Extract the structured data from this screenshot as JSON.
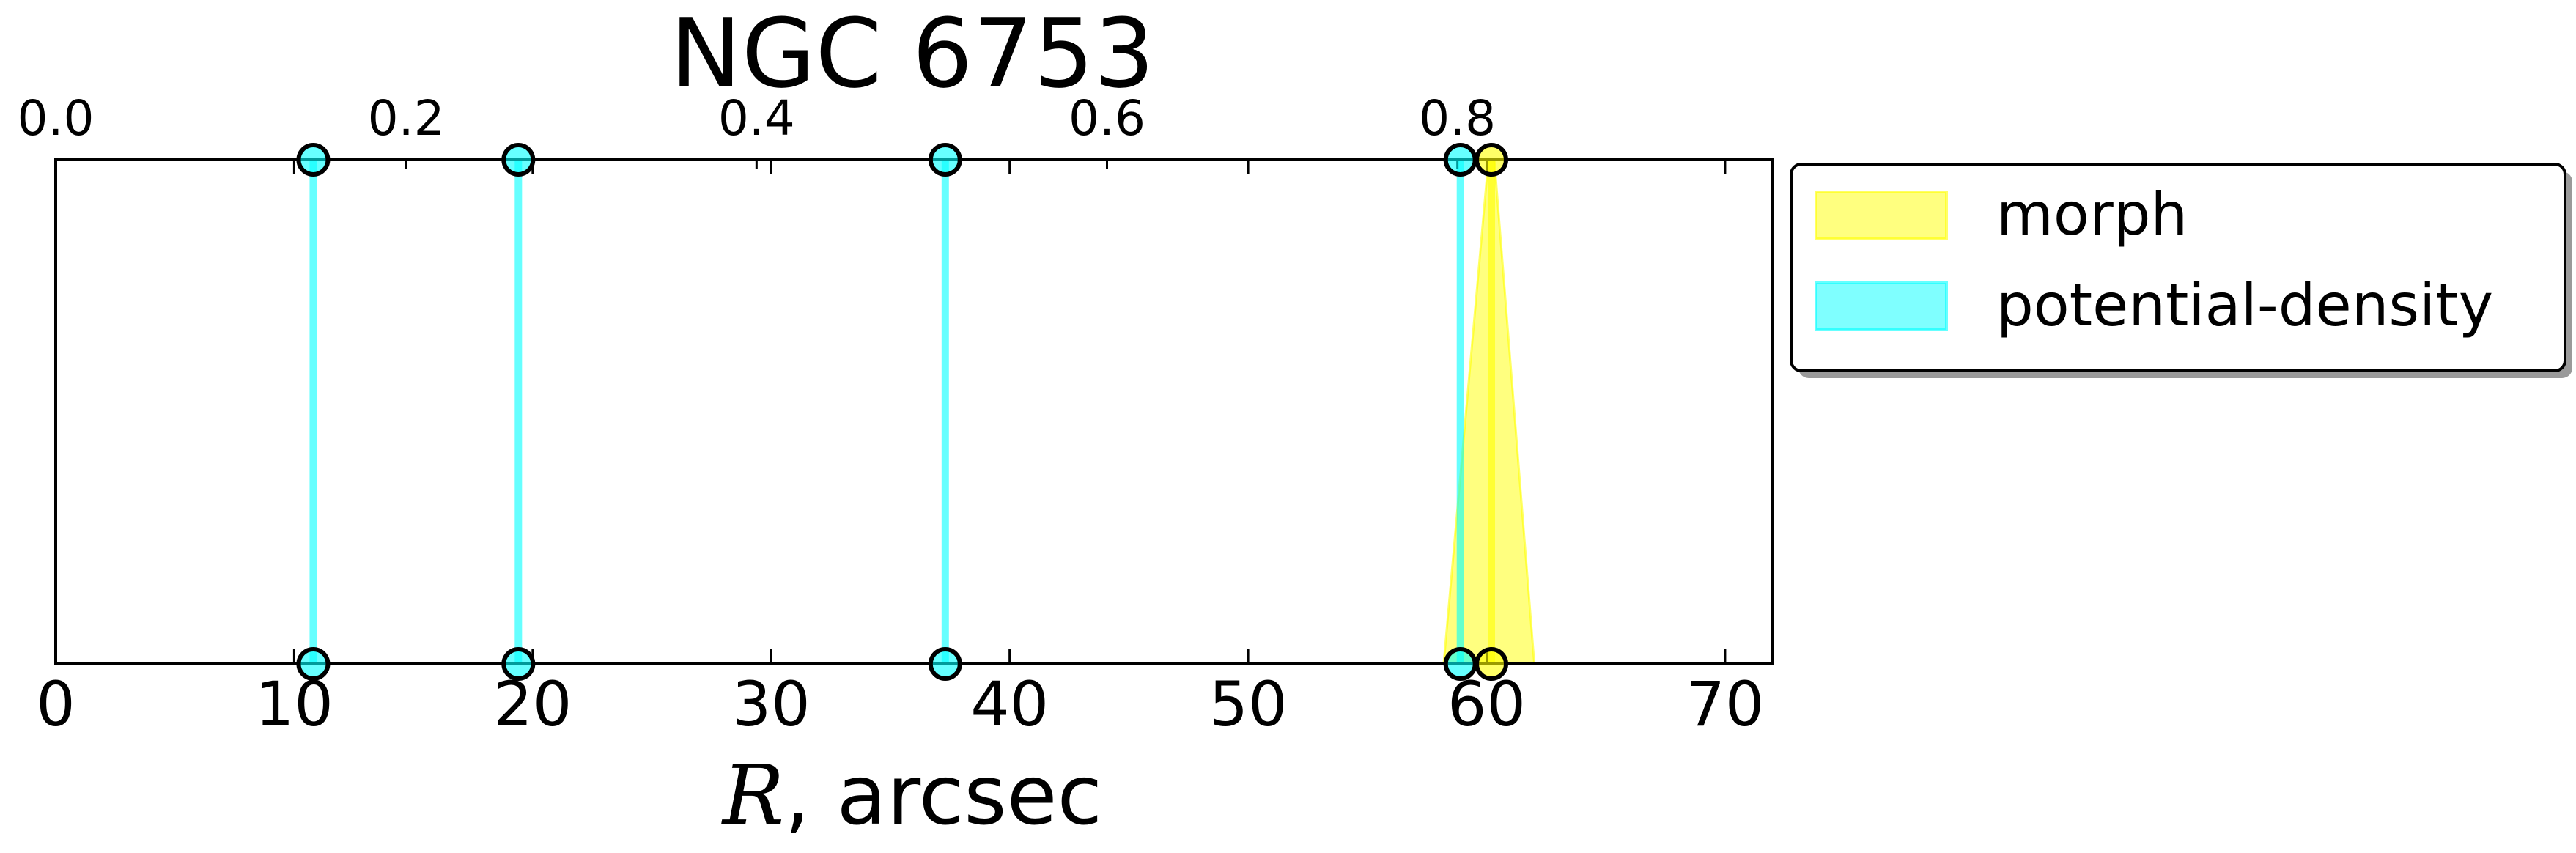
{
  "chart_data": {
    "type": "line",
    "title": "NGC 6753",
    "xlabel_symbol": "R",
    "xlabel_rest": ", arcsec",
    "xlim": [
      0,
      72
    ],
    "xticks": [
      0,
      10,
      20,
      30,
      40,
      50,
      60,
      70
    ],
    "xtick_labels": [
      "0",
      "10",
      "20",
      "30",
      "40",
      "50",
      "60",
      "70"
    ],
    "top_axis": {
      "xlim": [
        0.0,
        0.98
      ],
      "ticks": [
        0.0,
        0.2,
        0.4,
        0.6,
        0.8
      ],
      "tick_labels": [
        "0.0",
        "0.2",
        "0.4",
        "0.6",
        "0.8"
      ]
    },
    "grid": false,
    "legend_position": "outside-upper-right",
    "series": [
      {
        "name": "morph",
        "color": "#ffff00",
        "lines": [
          60.2
        ],
        "error_bands": [
          {
            "center": 60.2,
            "low": 58.2,
            "high": 62.0
          }
        ]
      },
      {
        "name": "potential-density",
        "color": "#00ffff",
        "lines": [
          10.8,
          19.4,
          37.3,
          58.9
        ]
      }
    ]
  }
}
